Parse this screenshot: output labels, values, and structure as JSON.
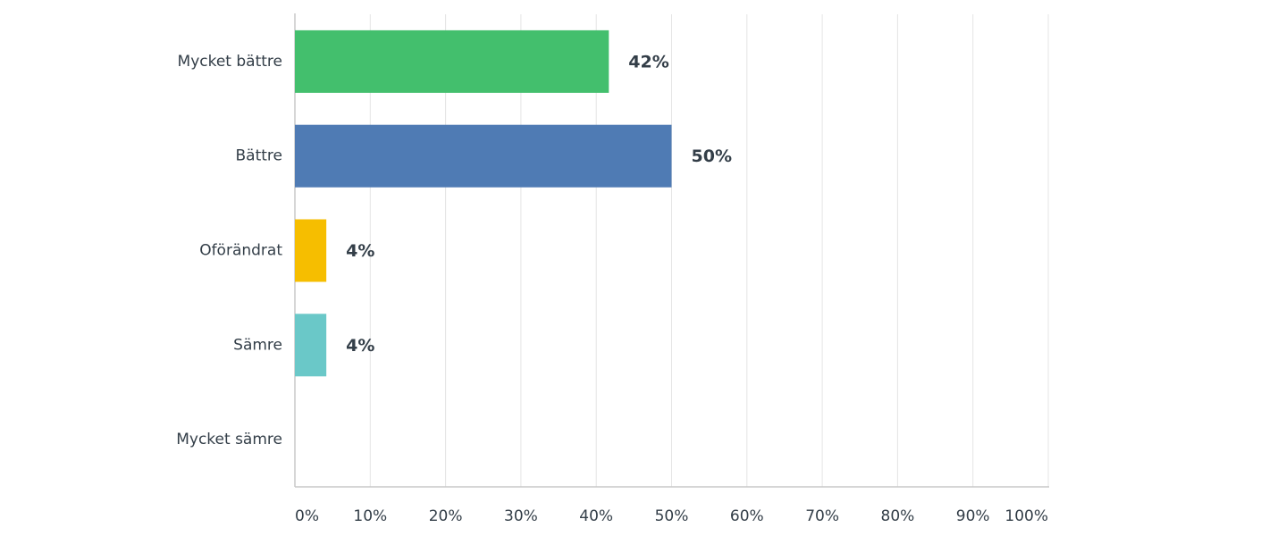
{
  "chart_data": {
    "type": "bar",
    "orientation": "horizontal",
    "categories": [
      "Mycket bättre",
      "Bättre",
      "Oförändrat",
      "Sämre",
      "Mycket sämre"
    ],
    "values": [
      41.67,
      50,
      4.17,
      4.17,
      0
    ],
    "value_labels": [
      "42%",
      "50%",
      "4%",
      "4%",
      null
    ],
    "colors": [
      "#43bf6d",
      "#4f7bb4",
      "#f6be00",
      "#6ac8c8",
      "#cccccc"
    ],
    "xlim": [
      0,
      100
    ],
    "xticks": [
      {
        "value": 0,
        "label": "0%"
      },
      {
        "value": 10,
        "label": "10%"
      },
      {
        "value": 20,
        "label": "20%"
      },
      {
        "value": 30,
        "label": "30%"
      },
      {
        "value": 40,
        "label": "40%"
      },
      {
        "value": 50,
        "label": "50%"
      },
      {
        "value": 60,
        "label": "60%"
      },
      {
        "value": 70,
        "label": "70%"
      },
      {
        "value": 80,
        "label": "80%"
      },
      {
        "value": 90,
        "label": "90%"
      },
      {
        "value": 100,
        "label": "100%"
      }
    ],
    "grid": true
  }
}
